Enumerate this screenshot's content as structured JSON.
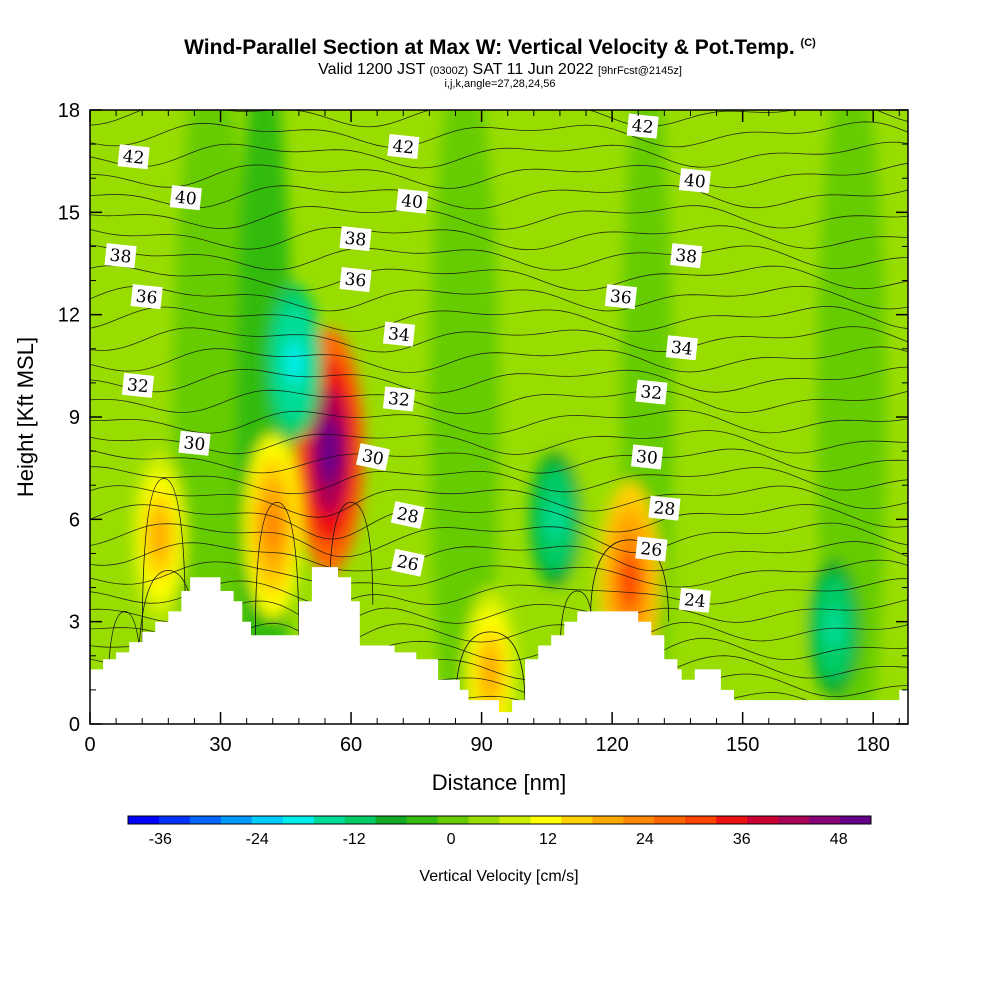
{
  "header": {
    "title": "Wind-Parallel Section at Max W: Vertical Velocity & Pot.Temp.",
    "copyright": "(C)",
    "valid_prefix": "Valid 1200 JST",
    "valid_utc": "(0300Z)",
    "valid_date": "SAT 11 Jun 2022",
    "forecast": "[9hrFcst@2145z]",
    "indices": "i,j,k,angle=27,28,24,56"
  },
  "chart_data": {
    "type": "heatmap",
    "xlabel": "Distance [nm]",
    "ylabel": "Height [Kft MSL]",
    "xlim": [
      0,
      188
    ],
    "ylim": [
      0,
      18
    ],
    "x_ticks": [
      "0",
      "30",
      "60",
      "90",
      "120",
      "150",
      "180"
    ],
    "y_ticks": [
      "0",
      "3",
      "6",
      "9",
      "12",
      "15",
      "18"
    ],
    "x_tick_values": [
      0,
      30,
      60,
      90,
      120,
      150,
      180
    ],
    "y_tick_values": [
      0,
      3,
      6,
      9,
      12,
      15,
      18
    ],
    "colorbar": {
      "label": "Vertical Velocity [cm/s]",
      "tick_labels": [
        "-36",
        "-24",
        "-12",
        "0",
        "12",
        "24",
        "36",
        "48"
      ],
      "tick_values": [
        -36,
        -24,
        -12,
        0,
        12,
        24,
        36,
        48
      ],
      "range": [
        -40,
        52
      ],
      "colors": [
        "#0000ff",
        "#0033ff",
        "#0066ff",
        "#0099ff",
        "#00ccff",
        "#00eeee",
        "#00dd99",
        "#00cc66",
        "#11aa22",
        "#33bb11",
        "#66cc00",
        "#99dd00",
        "#ccee00",
        "#ffff00",
        "#ffd000",
        "#ffaa00",
        "#ff8800",
        "#ff6600",
        "#ff4400",
        "#ee1111",
        "#cc0033",
        "#aa0055",
        "#880077",
        "#660088"
      ]
    },
    "terrain_kft": [
      [
        0,
        1.6
      ],
      [
        3,
        1.6
      ],
      [
        3,
        1.9
      ],
      [
        6,
        1.9
      ],
      [
        6,
        2.1
      ],
      [
        9,
        2.1
      ],
      [
        9,
        2.4
      ],
      [
        12,
        2.4
      ],
      [
        12,
        2.7
      ],
      [
        15,
        2.7
      ],
      [
        15,
        3.0
      ],
      [
        18,
        3.0
      ],
      [
        18,
        3.3
      ],
      [
        21,
        3.3
      ],
      [
        21,
        3.9
      ],
      [
        23,
        3.9
      ],
      [
        23,
        4.3
      ],
      [
        30,
        4.3
      ],
      [
        30,
        3.9
      ],
      [
        33,
        3.9
      ],
      [
        33,
        3.6
      ],
      [
        35,
        3.6
      ],
      [
        35,
        3.0
      ],
      [
        37,
        3.0
      ],
      [
        37,
        2.6
      ],
      [
        48,
        2.6
      ],
      [
        48,
        3.6
      ],
      [
        51,
        3.6
      ],
      [
        51,
        4.6
      ],
      [
        57,
        4.6
      ],
      [
        57,
        4.3
      ],
      [
        60,
        4.3
      ],
      [
        60,
        3.6
      ],
      [
        62,
        3.6
      ],
      [
        62,
        2.3
      ],
      [
        70,
        2.3
      ],
      [
        70,
        2.1
      ],
      [
        75,
        2.1
      ],
      [
        75,
        1.9
      ],
      [
        80,
        1.9
      ],
      [
        80,
        1.3
      ],
      [
        85,
        1.3
      ],
      [
        85,
        1.0
      ],
      [
        87,
        1.0
      ],
      [
        87,
        0.7
      ],
      [
        94,
        0.7
      ],
      [
        94,
        0.35
      ],
      [
        97,
        0.35
      ],
      [
        97,
        0.7
      ],
      [
        100,
        0.7
      ],
      [
        100,
        1.9
      ],
      [
        103,
        1.9
      ],
      [
        103,
        2.3
      ],
      [
        106,
        2.3
      ],
      [
        106,
        2.6
      ],
      [
        109,
        2.6
      ],
      [
        109,
        3.0
      ],
      [
        112,
        3.0
      ],
      [
        112,
        3.3
      ],
      [
        126,
        3.3
      ],
      [
        126,
        3.0
      ],
      [
        129,
        3.0
      ],
      [
        129,
        2.6
      ],
      [
        132,
        2.6
      ],
      [
        132,
        1.9
      ],
      [
        135,
        1.9
      ],
      [
        135,
        1.6
      ],
      [
        136,
        1.6
      ],
      [
        136,
        1.3
      ],
      [
        139,
        1.3
      ],
      [
        139,
        1.6
      ],
      [
        145,
        1.6
      ],
      [
        145,
        1.0
      ],
      [
        148,
        1.0
      ],
      [
        148,
        0.7
      ],
      [
        186,
        0.7
      ],
      [
        186,
        1.0
      ],
      [
        188,
        1.0
      ]
    ],
    "theta_contour_labels": [
      {
        "text": "42",
        "x": 10,
        "y": 16.6
      },
      {
        "text": "42",
        "x": 72,
        "y": 16.9
      },
      {
        "text": "42",
        "x": 127,
        "y": 17.5
      },
      {
        "text": "40",
        "x": 22,
        "y": 15.4
      },
      {
        "text": "40",
        "x": 74,
        "y": 15.3
      },
      {
        "text": "40",
        "x": 139,
        "y": 15.9
      },
      {
        "text": "38",
        "x": 7,
        "y": 13.7
      },
      {
        "text": "38",
        "x": 61,
        "y": 14.2
      },
      {
        "text": "38",
        "x": 137,
        "y": 13.7
      },
      {
        "text": "36",
        "x": 13,
        "y": 12.5
      },
      {
        "text": "36",
        "x": 61,
        "y": 13.0
      },
      {
        "text": "36",
        "x": 122,
        "y": 12.5
      },
      {
        "text": "34",
        "x": 71,
        "y": 11.4
      },
      {
        "text": "34",
        "x": 136,
        "y": 11.0
      },
      {
        "text": "32",
        "x": 11,
        "y": 9.9
      },
      {
        "text": "32",
        "x": 71,
        "y": 9.5
      },
      {
        "text": "32",
        "x": 129,
        "y": 9.7
      },
      {
        "text": "30",
        "x": 24,
        "y": 8.2
      },
      {
        "text": "30",
        "x": 65,
        "y": 7.8
      },
      {
        "text": "30",
        "x": 128,
        "y": 7.8
      },
      {
        "text": "28",
        "x": 73,
        "y": 6.1
      },
      {
        "text": "28",
        "x": 132,
        "y": 6.3
      },
      {
        "text": "26",
        "x": 73,
        "y": 4.7
      },
      {
        "text": "26",
        "x": 129,
        "y": 5.1
      },
      {
        "text": "24",
        "x": 139,
        "y": 3.6
      }
    ],
    "vertical_velocity_features": [
      {
        "kind": "updraft",
        "x": 55,
        "y": 8,
        "w_cm_s": 50
      },
      {
        "kind": "updraft",
        "x": 42,
        "y": 5.8,
        "w_cm_s": 24
      },
      {
        "kind": "updraft",
        "x": 16,
        "y": 5.5,
        "w_cm_s": 18
      },
      {
        "kind": "updraft",
        "x": 124,
        "y": 4.2,
        "w_cm_s": 30
      },
      {
        "kind": "updraft",
        "x": 92,
        "y": 1.5,
        "w_cm_s": 18
      },
      {
        "kind": "downdraft",
        "x": 47,
        "y": 10.6,
        "w_cm_s": -20
      },
      {
        "kind": "downdraft",
        "x": 107,
        "y": 6.0,
        "w_cm_s": -14
      },
      {
        "kind": "downdraft",
        "x": 171,
        "y": 2.8,
        "w_cm_s": -14
      }
    ]
  }
}
